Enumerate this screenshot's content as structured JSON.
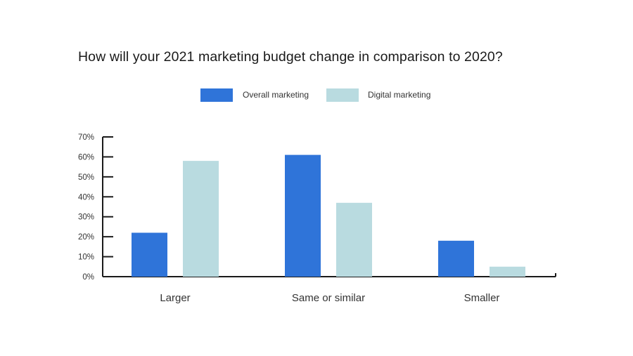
{
  "chart_data": {
    "type": "bar",
    "title": "How will your 2021 marketing budget change in comparison to 2020?",
    "categories": [
      "Larger",
      "Same or similar",
      "Smaller"
    ],
    "series": [
      {
        "name": "Overall marketing",
        "color": "#2f74d9",
        "values": [
          22,
          61,
          18
        ]
      },
      {
        "name": "Digital marketing",
        "color": "#b9dbe0",
        "values": [
          58,
          37,
          5
        ]
      }
    ],
    "ylim": [
      0,
      70
    ],
    "yticks": [
      "0%",
      "10%",
      "20%",
      "30%",
      "40%",
      "50%",
      "60%",
      "70%"
    ],
    "legend_position": "top-center",
    "grid": false
  }
}
